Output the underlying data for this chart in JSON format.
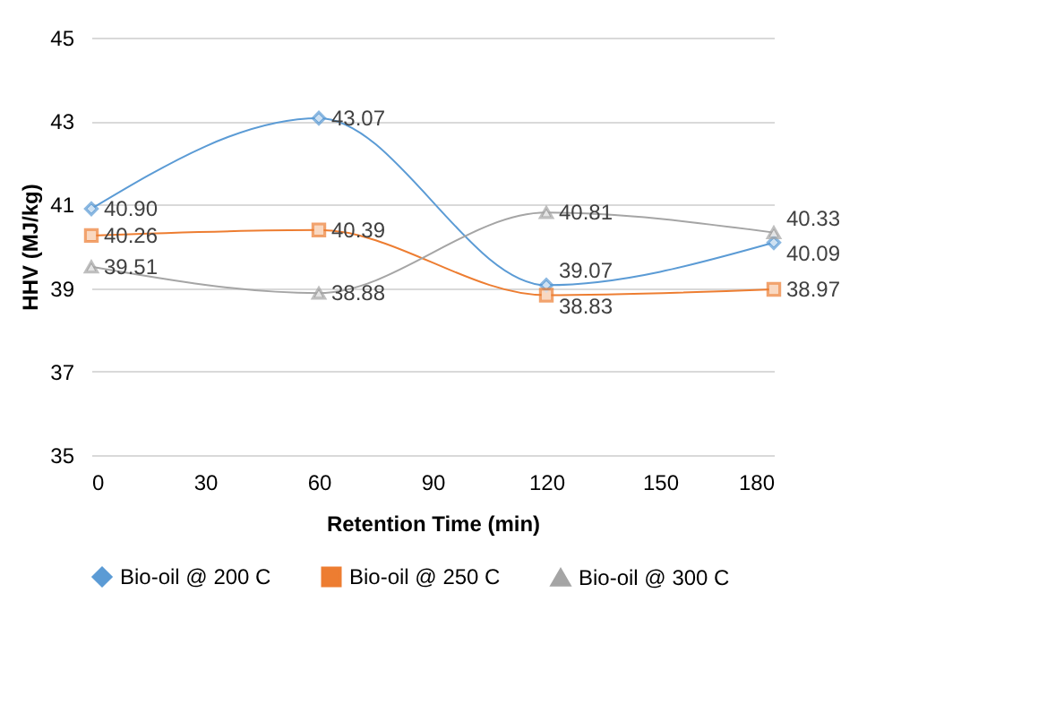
{
  "chart_data": {
    "type": "line",
    "xlabel": "Retention Time (min)",
    "ylabel": "HHV (MJ/kg)",
    "x": [
      0,
      60,
      120,
      180
    ],
    "series": [
      {
        "name": "Bio-oil @ 200 C",
        "color": "#5b9bd5",
        "marker": "diamond",
        "values": [
          40.9,
          43.07,
          39.07,
          40.09
        ],
        "value_labels": [
          "40.90",
          "43.07",
          "39.07",
          "40.09"
        ]
      },
      {
        "name": "Bio-oil @ 250 C",
        "color": "#ed7d31",
        "marker": "square",
        "values": [
          40.26,
          40.39,
          38.83,
          38.97
        ],
        "value_labels": [
          "40.26",
          "40.39",
          "38.83",
          "38.97"
        ]
      },
      {
        "name": "Bio-oil @ 300 C",
        "color": "#a5a5a5",
        "marker": "triangle",
        "values": [
          39.51,
          38.88,
          40.81,
          40.33
        ],
        "value_labels": [
          "39.51",
          "38.88",
          "40.81",
          "40.33"
        ]
      }
    ],
    "xlim": [
      0,
      180
    ],
    "xticks": [
      0,
      30,
      60,
      90,
      120,
      150,
      180
    ],
    "ylim": [
      35,
      45
    ],
    "yticks": [
      35,
      37,
      39,
      41,
      43,
      45
    ],
    "grid": "y",
    "legend": "bottom",
    "line_style": "solid"
  }
}
